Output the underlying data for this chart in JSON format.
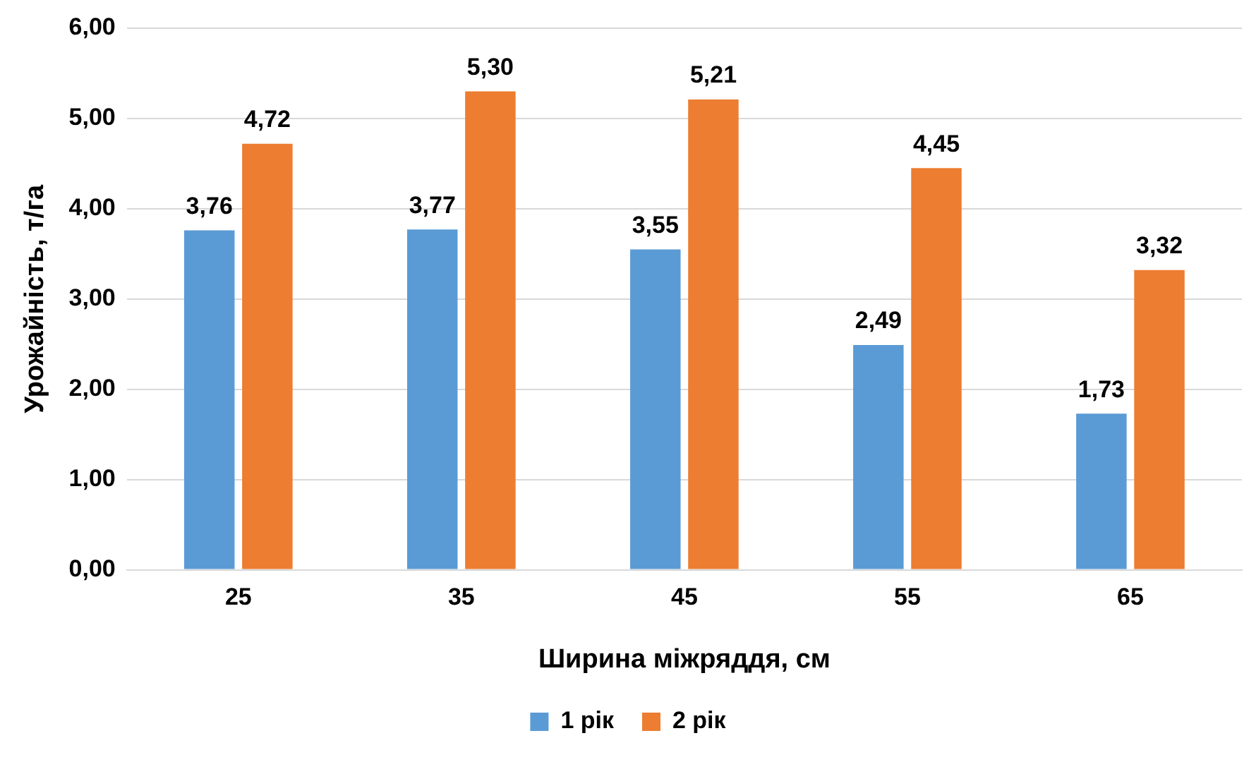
{
  "chart_data": {
    "type": "bar",
    "xlabel": "Ширина міжряддя, см",
    "ylabel": "Урожайність, т/га",
    "categories": [
      "25",
      "35",
      "45",
      "55",
      "65"
    ],
    "series": [
      {
        "name": "1 рік",
        "color": "#5b9bd5",
        "values": [
          3.76,
          3.77,
          3.55,
          2.49,
          1.73
        ],
        "value_labels": [
          "3,76",
          "3,77",
          "3,55",
          "2,49",
          "1,73"
        ]
      },
      {
        "name": "2 рік",
        "color": "#ed7d31",
        "values": [
          4.72,
          5.3,
          5.21,
          4.45,
          3.32
        ],
        "value_labels": [
          "4,72",
          "5,30",
          "5,21",
          "4,45",
          "3,32"
        ]
      }
    ],
    "ylim": [
      0,
      6
    ],
    "yticks": [
      {
        "value": 0,
        "label": "0,00"
      },
      {
        "value": 1,
        "label": "1,00"
      },
      {
        "value": 2,
        "label": "2,00"
      },
      {
        "value": 3,
        "label": "3,00"
      },
      {
        "value": 4,
        "label": "4,00"
      },
      {
        "value": 5,
        "label": "5,00"
      },
      {
        "value": 6,
        "label": "6,00"
      }
    ],
    "grid": "y",
    "legend": "bottom"
  }
}
